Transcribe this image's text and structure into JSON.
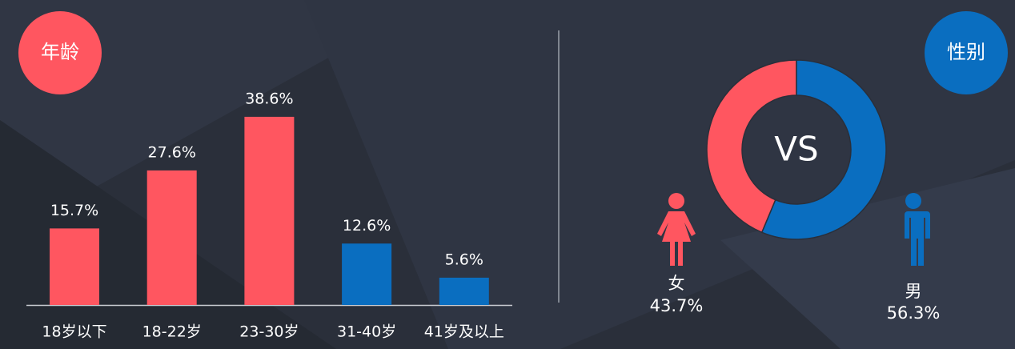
{
  "chart_data": [
    {
      "type": "bar",
      "title": "年龄",
      "categories": [
        "18岁以下",
        "18-22岁",
        "23-30岁",
        "31-40岁",
        "41岁及以上"
      ],
      "values": [
        15.7,
        27.6,
        38.6,
        12.6,
        5.6
      ],
      "value_labels": [
        "15.7%",
        "27.6%",
        "38.6%",
        "12.6%",
        "5.6%"
      ],
      "colors": [
        "#ff5660",
        "#ff5660",
        "#ff5660",
        "#0a6ec0",
        "#0a6ec0"
      ],
      "title_color": "#ff5660"
    },
    {
      "type": "donut",
      "title": "性别",
      "center_text": "VS",
      "categories": [
        "女",
        "男"
      ],
      "values": [
        43.7,
        56.3
      ],
      "value_labels": [
        "43.7%",
        "56.3%"
      ],
      "colors": [
        "#ff5660",
        "#0a6ec0"
      ],
      "title_color": "#0a6ec0"
    }
  ]
}
